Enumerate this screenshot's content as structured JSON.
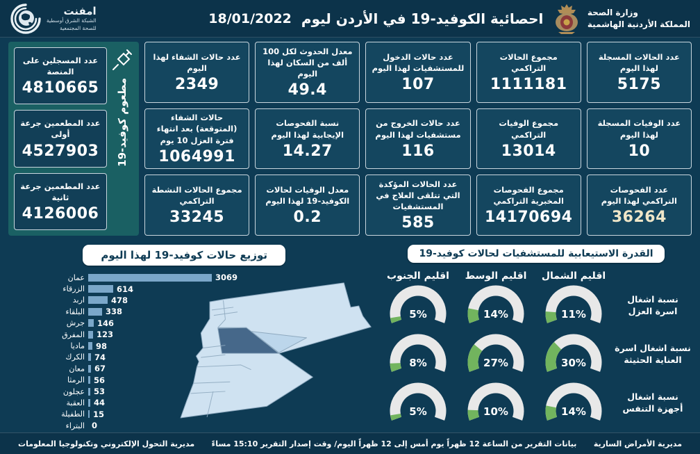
{
  "header": {
    "title": "احصائية الكوفيد-19 في الأردن ليوم",
    "date": "18/01/2022",
    "ministry_line1": "وزارة الصحة",
    "ministry_line2": "المملكة الأردنية الهاشمية",
    "emphnet_name": "امفنت",
    "emphnet_line1": "الشبكة الشرق أوسطية",
    "emphnet_line2": "للصحة المجتمعية"
  },
  "stats": {
    "columns": [
      {
        "cards": [
          {
            "label": "عدد الحالات المسجلة لهذا اليوم",
            "value": "5175"
          },
          {
            "label": "عدد الوفيات المسجلة لهذا اليوم",
            "value": "10"
          },
          {
            "label": "عدد الفحوصات التراكمي لهذا اليوم",
            "value": "36264",
            "value_color": "#efe6c8"
          }
        ]
      },
      {
        "cards": [
          {
            "label": "مجموع الحالات التراكمي",
            "value": "1111181"
          },
          {
            "label": "مجموع الوفيات التراكمي",
            "value": "13014"
          },
          {
            "label": "مجموع الفحوصات المخبرية التراكمي",
            "value": "14170694"
          }
        ]
      },
      {
        "cards": [
          {
            "label": "عدد حالات الدخول للمستشفيات لهذا اليوم",
            "value": "107"
          },
          {
            "label": "عدد حالات الخروج من مستشفيات لهذا اليوم",
            "value": "116"
          },
          {
            "label": "عدد الحالات المؤكدة التي تتلقى العلاج في المستشفيات",
            "value": "585"
          }
        ]
      },
      {
        "cards": [
          {
            "label": "معدل الحدوث لكل 100 ألف من السكان لهذا اليوم",
            "value": "49.4"
          },
          {
            "label": "نسبة الفحوصات الإيجابية لهذا اليوم",
            "value": "14.27"
          },
          {
            "label": "معدل الوفيات لحالات الكوفيد-19 لهذا اليوم",
            "value": "0.2"
          }
        ]
      },
      {
        "cards": [
          {
            "label": "عدد حالات الشفاء لهذا اليوم",
            "value": "2349"
          },
          {
            "label": "حالات الشفاء (المتوقعة) بعد انتهاء فترة العزل 10 يوم",
            "value": "1064991"
          },
          {
            "label": "مجموع الحالات النشطة التراكمي",
            "value": "33245"
          }
        ]
      }
    ],
    "vaccination": {
      "side_label": "مطعوم كوفيد-19",
      "cards": [
        {
          "label": "عدد المسجلين على المنصة",
          "value": "4810665"
        },
        {
          "label": "عدد المطعمين جرعة أولى",
          "value": "4527903"
        },
        {
          "label": "عدد المطعمين جرعة ثانية",
          "value": "4126006"
        }
      ]
    }
  },
  "chart_data": [
    {
      "type": "bar",
      "orientation": "horizontal",
      "title": "توزيع حالات كوفيد-19 لهذا اليوم",
      "categories": [
        "عمان",
        "الزرقاء",
        "اربد",
        "البلقاء",
        "جرش",
        "المفرق",
        "ماديا",
        "الكرك",
        "معان",
        "الرمثا",
        "عجلون",
        "العقبة",
        "الطفيلة",
        "البتراء"
      ],
      "values": [
        3069,
        614,
        478,
        338,
        146,
        123,
        98,
        74,
        67,
        56,
        53,
        44,
        15,
        0
      ],
      "xlim": [
        0,
        3069
      ],
      "bar_color": "#7ba7c9"
    },
    {
      "type": "gauge-grid",
      "title": "القدرة الاستيعابية للمستشفيات لحالات كوفيد-19",
      "columns": [
        "اقليم الشمال",
        "اقليم الوسط",
        "اقليم الجنوب"
      ],
      "rows": [
        {
          "label_line1": "نسبة اشغال",
          "label_line2": "اسرة العزل",
          "values": [
            11,
            14,
            5
          ]
        },
        {
          "label_line1": "نسبة اشغال اسرة",
          "label_line2": "العناية الحثيثة",
          "values": [
            30,
            27,
            8
          ]
        },
        {
          "label_line1": "نسبة اشغال",
          "label_line2": "أجهزة التنفس",
          "values": [
            14,
            10,
            5
          ]
        }
      ],
      "unit": "%",
      "track_color": "#e8e8e8",
      "fill_color": "#72b45e"
    }
  ],
  "footer": {
    "right": "مديرية الأمراض السارية",
    "center": "بيانات التقرير من الساعة 12 ظهراً يوم أمس إلى 12 ظهراً اليوم/ وقت إصدار التقرير 15:10 مساءً",
    "left": "مديرية التحول الإلكتروني وتكنولوجيا المعلومات"
  },
  "colors": {
    "background": "#0e3b54",
    "header_bg": "#0c334a",
    "card_bg": "#14465f",
    "vaccine_panel": "#1a6063",
    "bar": "#7ba7c9",
    "gauge_track": "#e8e8e8",
    "gauge_fill": "#72b45e",
    "map_fill": "#cfe2f1",
    "map_highlight": "#46688a"
  }
}
